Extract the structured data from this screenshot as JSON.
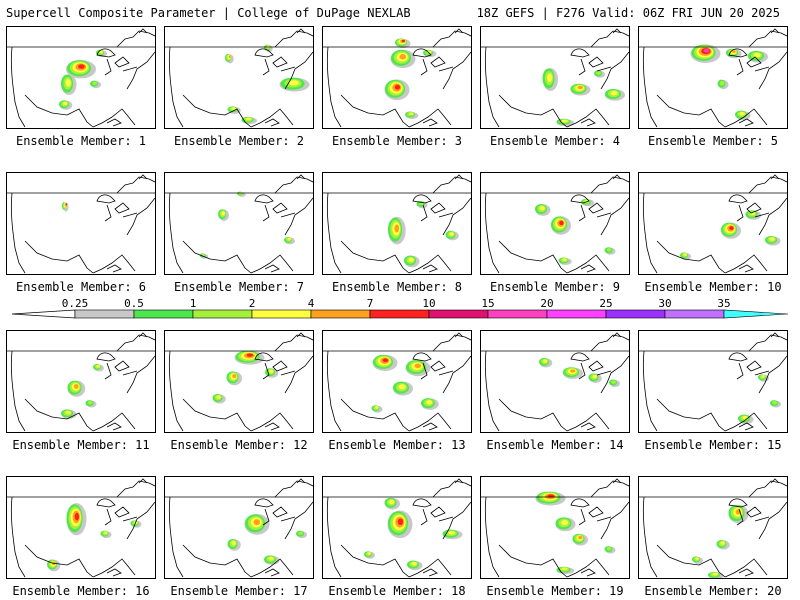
{
  "header": {
    "left": "Supercell Composite Parameter | College of DuPage NEXLAB",
    "right": "18Z GEFS | F276 Valid: 06Z FRI JUN 20 2025"
  },
  "colorbar": {
    "levels": [
      "0.25",
      "0.5",
      "1",
      "2",
      "4",
      "7",
      "10",
      "15",
      "20",
      "25",
      "30",
      "35"
    ],
    "colors": [
      "#c8c8c8",
      "#4de64d",
      "#a6f03c",
      "#ffff40",
      "#ffa020",
      "#ff2020",
      "#e01070",
      "#ff40c0",
      "#ff40ff",
      "#9b30ff",
      "#c070ff",
      "#40ffff"
    ]
  },
  "members": [
    {
      "label": "Ensemble Member: 1",
      "blobs": [
        [
          0.48,
          0.4,
          12,
          8,
          3
        ],
        [
          0.4,
          0.55,
          6,
          9,
          1
        ],
        [
          0.62,
          0.25,
          4,
          3,
          1
        ],
        [
          0.38,
          0.75,
          5,
          4,
          1
        ],
        [
          0.58,
          0.55,
          4,
          3,
          0
        ]
      ]
    },
    {
      "label": "Ensemble Member: 2",
      "blobs": [
        [
          0.42,
          0.3,
          3,
          4,
          2
        ],
        [
          0.85,
          0.55,
          12,
          6,
          1
        ],
        [
          0.55,
          0.9,
          6,
          3,
          1
        ],
        [
          0.45,
          0.8,
          5,
          3,
          1
        ],
        [
          0.68,
          0.2,
          3,
          3,
          1
        ]
      ]
    },
    {
      "label": "Ensemble Member: 3",
      "blobs": [
        [
          0.52,
          0.3,
          10,
          8,
          2
        ],
        [
          0.48,
          0.6,
          10,
          9,
          3
        ],
        [
          0.7,
          0.25,
          5,
          3,
          1
        ],
        [
          0.58,
          0.85,
          5,
          3,
          1
        ],
        [
          0.52,
          0.15,
          6,
          4,
          3
        ]
      ]
    },
    {
      "label": "Ensemble Member: 4",
      "blobs": [
        [
          0.45,
          0.5,
          6,
          10,
          1
        ],
        [
          0.65,
          0.6,
          8,
          5,
          2
        ],
        [
          0.88,
          0.65,
          8,
          5,
          1
        ],
        [
          0.55,
          0.92,
          7,
          3,
          1
        ],
        [
          0.78,
          0.45,
          4,
          3,
          0
        ]
      ]
    },
    {
      "label": "Ensemble Member: 5",
      "blobs": [
        [
          0.43,
          0.25,
          12,
          8,
          4
        ],
        [
          0.62,
          0.25,
          6,
          4,
          2
        ],
        [
          0.78,
          0.28,
          8,
          5,
          1
        ],
        [
          0.55,
          0.55,
          4,
          4,
          0
        ],
        [
          0.68,
          0.85,
          6,
          4,
          1
        ]
      ]
    },
    {
      "label": "Ensemble Member: 6",
      "blobs": [
        [
          0.38,
          0.32,
          2,
          4,
          3
        ]
      ]
    },
    {
      "label": "Ensemble Member: 7",
      "blobs": [
        [
          0.38,
          0.4,
          4,
          5,
          1
        ],
        [
          0.82,
          0.65,
          4,
          3,
          1
        ],
        [
          0.5,
          0.2,
          3,
          2,
          1
        ],
        [
          0.25,
          0.8,
          3,
          2,
          0
        ]
      ]
    },
    {
      "label": "Ensemble Member: 8",
      "blobs": [
        [
          0.48,
          0.55,
          7,
          12,
          2
        ],
        [
          0.58,
          0.85,
          6,
          5,
          1
        ],
        [
          0.85,
          0.6,
          5,
          4,
          1
        ],
        [
          0.65,
          0.3,
          4,
          3,
          0
        ]
      ]
    },
    {
      "label": "Ensemble Member: 9",
      "blobs": [
        [
          0.4,
          0.35,
          6,
          5,
          1
        ],
        [
          0.52,
          0.5,
          8,
          8,
          3
        ],
        [
          0.7,
          0.28,
          5,
          3,
          1
        ],
        [
          0.55,
          0.85,
          5,
          3,
          1
        ],
        [
          0.85,
          0.75,
          4,
          3,
          0
        ]
      ]
    },
    {
      "label": "Ensemble Member: 10",
      "blobs": [
        [
          0.6,
          0.55,
          8,
          7,
          3
        ],
        [
          0.75,
          0.4,
          6,
          4,
          1
        ],
        [
          0.3,
          0.8,
          4,
          3,
          1
        ],
        [
          0.88,
          0.65,
          6,
          4,
          1
        ]
      ]
    },
    {
      "label": "Ensemble Member: 11",
      "blobs": [
        [
          0.45,
          0.55,
          7,
          7,
          2
        ],
        [
          0.4,
          0.8,
          6,
          4,
          1
        ],
        [
          0.6,
          0.35,
          4,
          3,
          1
        ],
        [
          0.55,
          0.7,
          4,
          3,
          0
        ]
      ]
    },
    {
      "label": "Ensemble Member: 12",
      "blobs": [
        [
          0.55,
          0.25,
          12,
          6,
          3
        ],
        [
          0.45,
          0.45,
          6,
          6,
          2
        ],
        [
          0.7,
          0.4,
          5,
          4,
          1
        ],
        [
          0.35,
          0.65,
          5,
          4,
          1
        ]
      ]
    },
    {
      "label": "Ensemble Member: 13",
      "blobs": [
        [
          0.4,
          0.3,
          10,
          7,
          3
        ],
        [
          0.62,
          0.35,
          10,
          7,
          2
        ],
        [
          0.52,
          0.55,
          8,
          6,
          1
        ],
        [
          0.7,
          0.7,
          7,
          5,
          1
        ],
        [
          0.35,
          0.75,
          4,
          3,
          1
        ]
      ]
    },
    {
      "label": "Ensemble Member: 14",
      "blobs": [
        [
          0.42,
          0.3,
          5,
          4,
          1
        ],
        [
          0.6,
          0.4,
          8,
          5,
          2
        ],
        [
          0.75,
          0.45,
          5,
          4,
          1
        ],
        [
          0.88,
          0.5,
          4,
          3,
          0
        ]
      ]
    },
    {
      "label": "Ensemble Member: 15",
      "blobs": [
        [
          0.7,
          0.85,
          6,
          4,
          1
        ],
        [
          0.82,
          0.45,
          4,
          3,
          1
        ],
        [
          0.9,
          0.7,
          4,
          3,
          0
        ]
      ]
    },
    {
      "label": "Ensemble Member: 16",
      "blobs": [
        [
          0.45,
          0.4,
          8,
          14,
          3
        ],
        [
          0.3,
          0.85,
          5,
          5,
          2
        ],
        [
          0.65,
          0.55,
          4,
          3,
          1
        ],
        [
          0.85,
          0.45,
          4,
          3,
          1
        ]
      ]
    },
    {
      "label": "Ensemble Member: 17",
      "blobs": [
        [
          0.6,
          0.45,
          10,
          9,
          2
        ],
        [
          0.45,
          0.65,
          5,
          5,
          1
        ],
        [
          0.7,
          0.8,
          6,
          4,
          1
        ],
        [
          0.9,
          0.55,
          4,
          3,
          0
        ]
      ]
    },
    {
      "label": "Ensemble Member: 18",
      "blobs": [
        [
          0.5,
          0.45,
          10,
          12,
          3
        ],
        [
          0.45,
          0.25,
          6,
          5,
          1
        ],
        [
          0.6,
          0.85,
          6,
          4,
          1
        ],
        [
          0.85,
          0.55,
          8,
          4,
          1
        ],
        [
          0.3,
          0.75,
          4,
          3,
          1
        ]
      ]
    },
    {
      "label": "Ensemble Member: 19",
      "blobs": [
        [
          0.45,
          0.2,
          12,
          6,
          3
        ],
        [
          0.55,
          0.45,
          8,
          6,
          1
        ],
        [
          0.65,
          0.6,
          6,
          5,
          2
        ],
        [
          0.55,
          0.9,
          7,
          3,
          1
        ],
        [
          0.85,
          0.7,
          4,
          3,
          0
        ]
      ]
    },
    {
      "label": "Ensemble Member: 20",
      "blobs": [
        [
          0.65,
          0.35,
          8,
          8,
          2
        ],
        [
          0.55,
          0.65,
          5,
          4,
          1
        ],
        [
          0.5,
          0.95,
          6,
          3,
          1
        ],
        [
          0.38,
          0.8,
          4,
          3,
          1
        ]
      ]
    }
  ]
}
